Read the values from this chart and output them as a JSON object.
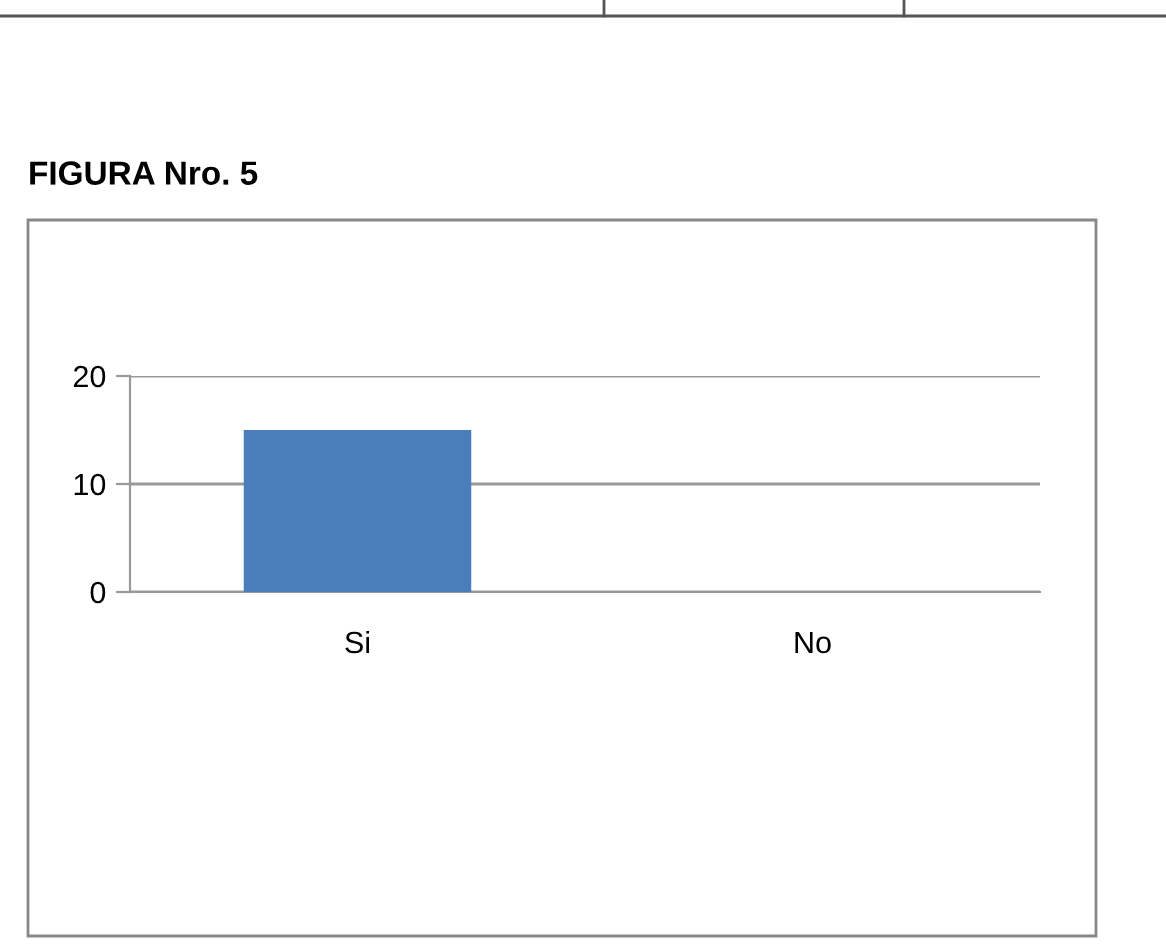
{
  "chart_data": {
    "type": "bar",
    "title": "FIGURA Nro. 5",
    "categories": [
      "Si",
      "No"
    ],
    "values": [
      15,
      0
    ],
    "color": "#4a7ebb",
    "ylim": [
      0,
      20
    ],
    "yticks": [
      0,
      10,
      20
    ],
    "grid": "y"
  }
}
